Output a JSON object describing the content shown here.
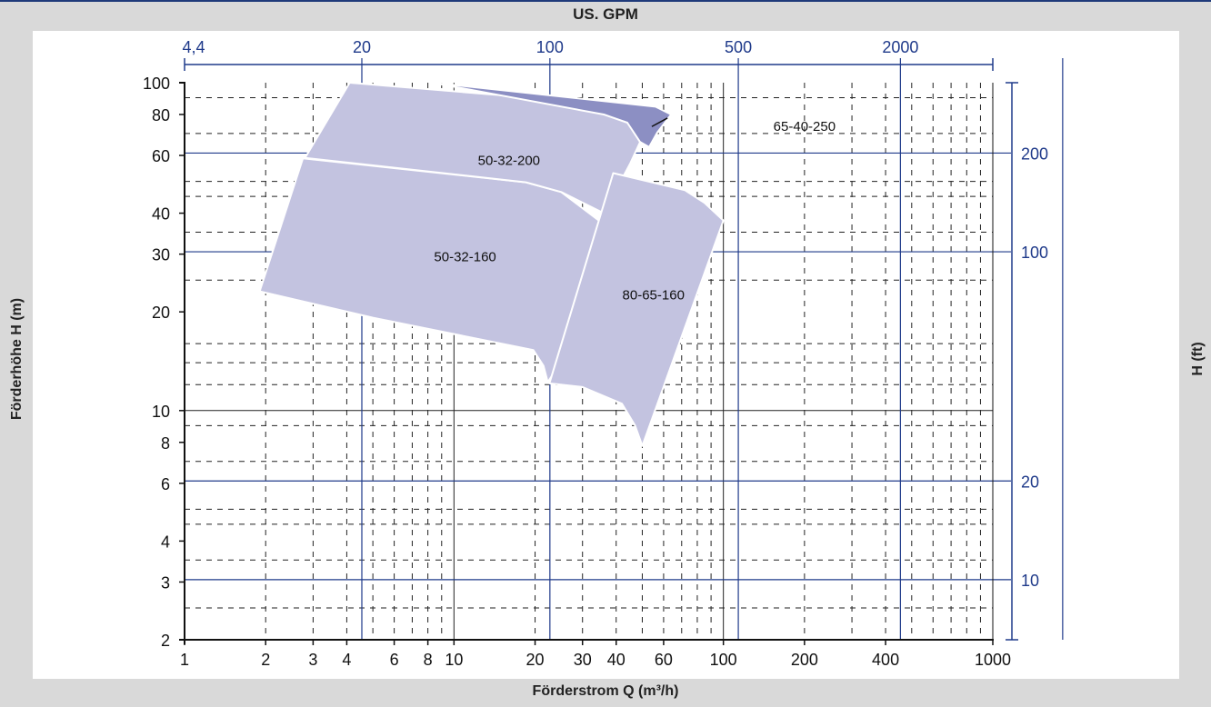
{
  "chart_data": {
    "type": "area",
    "xlabel": "Förderstrom Q (m³/h)",
    "ylabel": "Förderhöhe H (m)",
    "x2label": "US. GPM",
    "y2label": "H (ft)",
    "x_scale": "log",
    "y_scale": "log",
    "xlim": [
      1,
      1000
    ],
    "ylim": [
      2,
      100
    ],
    "grid": true,
    "x_ticks": [
      {
        "value": 1,
        "label": "1"
      },
      {
        "value": 2,
        "label": "2"
      },
      {
        "value": 3,
        "label": "3"
      },
      {
        "value": 4,
        "label": "4"
      },
      {
        "value": 6,
        "label": "6"
      },
      {
        "value": 8,
        "label": "8"
      },
      {
        "value": 10,
        "label": "10"
      },
      {
        "value": 20,
        "label": "20"
      },
      {
        "value": 30,
        "label": "30"
      },
      {
        "value": 40,
        "label": "40"
      },
      {
        "value": 60,
        "label": "60"
      },
      {
        "value": 100,
        "label": "100"
      },
      {
        "value": 200,
        "label": "200"
      },
      {
        "value": 400,
        "label": "400"
      },
      {
        "value": 1000,
        "label": "1000"
      }
    ],
    "y_ticks": [
      {
        "value": 2,
        "label": "2"
      },
      {
        "value": 3,
        "label": "3"
      },
      {
        "value": 4,
        "label": "4"
      },
      {
        "value": 6,
        "label": "6"
      },
      {
        "value": 8,
        "label": "8"
      },
      {
        "value": 10,
        "label": "10"
      },
      {
        "value": 20,
        "label": "20"
      },
      {
        "value": 30,
        "label": "30"
      },
      {
        "value": 40,
        "label": "40"
      },
      {
        "value": 60,
        "label": "60"
      },
      {
        "value": 80,
        "label": "80"
      },
      {
        "value": 100,
        "label": "100"
      }
    ],
    "gpm_ticks": [
      {
        "value": 1,
        "label": "4,4"
      },
      {
        "value": 4.55,
        "label": "20"
      },
      {
        "value": 22.7,
        "label": "100"
      },
      {
        "value": 113.6,
        "label": "500"
      },
      {
        "value": 454,
        "label": "2000"
      }
    ],
    "gpm_extra_lines": [
      1817
    ],
    "ft_ticks": [
      {
        "value": 3.05,
        "label": "10"
      },
      {
        "value": 6.1,
        "label": "20"
      },
      {
        "value": 30.5,
        "label": "100"
      },
      {
        "value": 61,
        "label": "200"
      }
    ],
    "ft_axis_range": [
      1.94,
      106
    ],
    "regions": [
      {
        "name": "50-32-160",
        "color": "#c3c3e0",
        "label_at": [
          11,
          29.5
        ],
        "points": [
          [
            2.75,
            58.8
          ],
          [
            18.5,
            49.7
          ],
          [
            25,
            46.4
          ],
          [
            36,
            37
          ],
          [
            28,
            19.7
          ],
          [
            24,
            13.4
          ],
          [
            22.3,
            12.2
          ],
          [
            21.5,
            13.7
          ],
          [
            19.7,
            15.3
          ],
          [
            5,
            19.2
          ],
          [
            1.9,
            23.1
          ]
        ]
      },
      {
        "name": "50-32-200",
        "color": "#c3c3e0",
        "label_at": [
          16,
          58
        ],
        "points": [
          [
            4.1,
            100
          ],
          [
            45,
            85
          ],
          [
            47,
            76.5
          ],
          [
            50,
            68.2
          ],
          [
            45,
            56.5
          ],
          [
            36,
            40
          ],
          [
            25,
            46.4
          ],
          [
            18.5,
            49.7
          ],
          [
            2.8,
            59
          ]
        ]
      },
      {
        "name": "80-65-160",
        "color": "#c3c3e0",
        "label_at": [
          55,
          22.5
        ],
        "points": [
          [
            39,
            53
          ],
          [
            72,
            47
          ],
          [
            85,
            43
          ],
          [
            100,
            38
          ],
          [
            50,
            7.8
          ],
          [
            47,
            9
          ],
          [
            42,
            10.5
          ],
          [
            30,
            11.8
          ],
          [
            22.6,
            12.1
          ]
        ]
      },
      {
        "name": "65-40-250",
        "color": "#8c8fc3",
        "label_at": [
          200,
          73.5
        ],
        "points": [
          [
            8.3,
            100
          ],
          [
            56,
            84.5
          ],
          [
            64,
            80
          ],
          [
            57,
            70.7
          ],
          [
            53,
            63.6
          ],
          [
            49,
            66
          ],
          [
            44,
            75.5
          ],
          [
            36,
            80
          ]
        ]
      }
    ]
  }
}
